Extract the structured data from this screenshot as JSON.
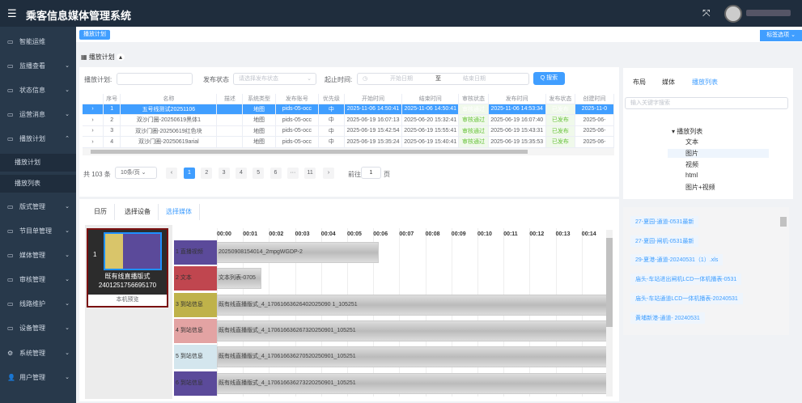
{
  "app": {
    "title": "乘客信息媒体管理系统",
    "menu_icon": "hamburger-icon",
    "fullscreen_icon": "fullscreen-icon"
  },
  "sidebar": {
    "items": [
      {
        "label": "智能运维",
        "icon": "monitor-icon"
      },
      {
        "label": "监播查看",
        "icon": "monitor-icon",
        "arrow": "⌄"
      },
      {
        "label": "状态信息",
        "icon": "monitor-icon",
        "arrow": "⌄"
      },
      {
        "label": "运营消息",
        "icon": "monitor-icon",
        "arrow": "⌄"
      },
      {
        "label": "播放计划",
        "icon": "monitor-icon",
        "arrow": "⌃"
      },
      {
        "label": "播放计划",
        "sub": true
      },
      {
        "label": "播放列表",
        "sub": true
      },
      {
        "label": "版式管理",
        "icon": "monitor-icon",
        "arrow": "⌄"
      },
      {
        "label": "节目单管理",
        "icon": "monitor-icon",
        "arrow": "⌄"
      },
      {
        "label": "媒体管理",
        "icon": "monitor-icon",
        "arrow": "⌄"
      },
      {
        "label": "审核管理",
        "icon": "monitor-icon",
        "arrow": "⌄"
      },
      {
        "label": "线路维护",
        "icon": "monitor-icon",
        "arrow": "⌄"
      },
      {
        "label": "设备管理",
        "icon": "monitor-icon",
        "arrow": "⌄"
      },
      {
        "label": "系统管理",
        "icon": "gear-icon",
        "arrow": "⌄"
      },
      {
        "label": "用户管理",
        "icon": "user-icon",
        "arrow": "⌄"
      }
    ]
  },
  "tags": {
    "active": "播放计划",
    "options": "标签选项 ⌄"
  },
  "breadcrumb": "播放计划",
  "filter": {
    "plan_label": "播放计划:",
    "plan_value": "",
    "status_label": "发布状态",
    "status_placeholder": "请选择发布状态",
    "time_label": "起止时间:",
    "start_placeholder": "开始日期",
    "to": "至",
    "end_placeholder": "结束日期",
    "search": "Q 搜索"
  },
  "table": {
    "columns": [
      "",
      "序号",
      "名称",
      "描述",
      "系统类型",
      "发布账号",
      "优先级",
      "开始时间",
      "结束时间",
      "审核状态",
      "发布时间",
      "发布状态",
      "创建时间"
    ],
    "rows": [
      [
        "›",
        "1",
        "五号线测试20251106",
        "",
        "地图",
        "pids-05-occ",
        "中",
        "2025-11-06 14:50:41",
        "2025-11-06 14:50:41",
        "审核通过",
        "2025-11-06 14:53:34",
        "已发布",
        "2025-11-0"
      ],
      [
        "›",
        "2",
        "双沙门圈-20250619黑体1",
        "",
        "地图",
        "pids-05-occ",
        "中",
        "2025-06-19 16:07:13",
        "2025-06-20 15:32:41",
        "审核通过",
        "2025-06-19 16:07:40",
        "已发布",
        "2025-06-"
      ],
      [
        "›",
        "3",
        "双沙门圈-20250619红色块",
        "",
        "地图",
        "pids-05-occ",
        "中",
        "2025-06-19 15:42:54",
        "2025-06-19 15:55:41",
        "审核通过",
        "2025-06-19 15:43:31",
        "已发布",
        "2025-06-"
      ],
      [
        "›",
        "4",
        "双沙门圈-20250619arial",
        "",
        "地图",
        "pids-05-occ",
        "中",
        "2025-06-19 15:35:24",
        "2025-06-19 15:40:41",
        "审核通过",
        "2025-06-19 15:35:53",
        "已发布",
        "2025-06-"
      ]
    ]
  },
  "pagination": {
    "total": "共 103 条",
    "page_size": "10条/页",
    "pages": [
      "1",
      "2",
      "3",
      "4",
      "5",
      "6",
      "···",
      "11"
    ],
    "current": 1,
    "goto_label": "前往",
    "goto_value": "1",
    "page_suffix": "页"
  },
  "lower_tabs": [
    "日历",
    "选择设备",
    "选择媒体"
  ],
  "thumbnail": {
    "index": "1",
    "name": "既有线直播版式",
    "id": "2401251756695170",
    "preview": "本机预览"
  },
  "timeline": {
    "ticks": [
      "00:00",
      "00:01",
      "00:02",
      "00:03",
      "00:04",
      "00:05",
      "00:06",
      "00:07",
      "00:08",
      "00:09",
      "00:10",
      "00:11",
      "00:12",
      "00:13",
      "00:14"
    ],
    "tracks": [
      {
        "label": "1 直播视频",
        "color": "#5b4a9a",
        "item": "20250908154014_2mpgWGDP-2",
        "duration": 6.2
      },
      {
        "label": "2 文本",
        "color": "#c0464f",
        "item": "文本列表-0705",
        "duration": 1.7
      },
      {
        "label": "3 到站信息",
        "color": "#bfb24a",
        "item": "既有线直播版式_4_17061663626402025090 1_105251",
        "duration": 15
      },
      {
        "label": "4 到站信息",
        "color": "#e3a3a3",
        "item": "既有线直播版式_4_170616636267320250901_105251",
        "duration": 15
      },
      {
        "label": "5 到站信息",
        "color": "#d4e6ee",
        "item": "既有线直播版式_4_170616636270520250901_105251",
        "duration": 15
      },
      {
        "label": "6 到站信息",
        "color": "#5b4a9a",
        "item": "既有线直播版式_4_170616636273220250901_105251",
        "duration": 15
      }
    ]
  },
  "right": {
    "tabs": [
      "布局",
      "媒体",
      "播放列表"
    ],
    "active_tab": 2,
    "search_placeholder": "输入关键字搜索",
    "tree_root": "播放列表",
    "tree_children": [
      "文本",
      "图片",
      "视频",
      "html",
      "图片+视频"
    ],
    "media_list": [
      "27-夏园-通道-0531最新",
      "27-夏园-闸机-0531最新",
      "29-夏港-通道-20240531（1）.xls",
      "庙头-车站进出闸机LCD一体机播表-0531",
      "庙头-车站通道LCD一体机播表-20240531",
      "黄埔新港-通道- 20240531"
    ]
  }
}
